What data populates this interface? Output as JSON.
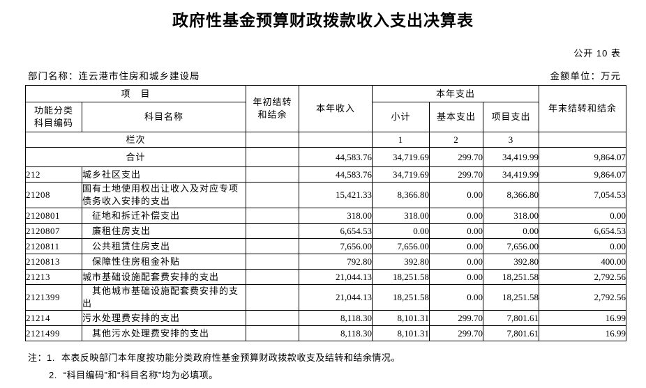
{
  "page": {
    "title": "政府性基金预算财政拨款收入支出决算表",
    "table_number": "公开 10 表",
    "department_label": "部门名称：连云港市住房和城乡建设局",
    "unit_label": "金额单位：万元"
  },
  "table": {
    "headers": {
      "project": "项　目",
      "code": "功能分类\n科目编码",
      "name": "科目名称",
      "carryover_begin": "年初结转\n和结余",
      "income": "本年收入",
      "expenditure": "本年支出",
      "subtotal": "小计",
      "basic": "基本支出",
      "project_exp": "项目支出",
      "carryover_end": "年末结转和结余",
      "row_index_label": "栏次",
      "col_indices": [
        "1",
        "2",
        "3"
      ]
    },
    "total_row": {
      "label": "合计",
      "values": [
        "",
        "44,583.76",
        "34,719.69",
        "299.70",
        "34,419.99",
        "9,864.07"
      ]
    },
    "rows": [
      {
        "code": "212",
        "name": "城乡社区支出",
        "indent": 0,
        "values": [
          "",
          "44,583.76",
          "34,719.69",
          "299.70",
          "34,419.99",
          "9,864.07"
        ]
      },
      {
        "code": "21208",
        "name": "国有土地使用权出让收入及对应专项债务收入安排的支出",
        "indent": 0,
        "values": [
          "",
          "15,421.33",
          "8,366.80",
          "0.00",
          "8,366.80",
          "7,054.53"
        ]
      },
      {
        "code": "2120801",
        "name": "征地和拆迁补偿支出",
        "indent": 1,
        "values": [
          "",
          "318.00",
          "318.00",
          "0.00",
          "318.00",
          "0.00"
        ]
      },
      {
        "code": "2120807",
        "name": "廉租住房支出",
        "indent": 1,
        "values": [
          "",
          "6,654.53",
          "0.00",
          "0.00",
          "0.00",
          "6,654.53"
        ]
      },
      {
        "code": "2120811",
        "name": "公共租赁住房支出",
        "indent": 1,
        "values": [
          "",
          "7,656.00",
          "7,656.00",
          "0.00",
          "7,656.00",
          "0.00"
        ]
      },
      {
        "code": "2120813",
        "name": "保障性住房租金补贴",
        "indent": 1,
        "values": [
          "",
          "792.80",
          "392.80",
          "0.00",
          "392.80",
          "400.00"
        ]
      },
      {
        "code": "21213",
        "name": "城市基础设施配套费安排的支出",
        "indent": 0,
        "values": [
          "",
          "21,044.13",
          "18,251.58",
          "0.00",
          "18,251.58",
          "2,792.56"
        ]
      },
      {
        "code": "2121399",
        "name": "其他城市基础设施配套费安排的支出",
        "indent": 1,
        "values": [
          "",
          "21,044.13",
          "18,251.58",
          "0.00",
          "18,251.58",
          "2,792.56"
        ]
      },
      {
        "code": "21214",
        "name": "污水处理费安排的支出",
        "indent": 0,
        "values": [
          "",
          "8,118.30",
          "8,101.31",
          "299.70",
          "7,801.61",
          "16.99"
        ]
      },
      {
        "code": "2121499",
        "name": "其他污水处理费安排的支出",
        "indent": 1,
        "values": [
          "",
          "8,118.30",
          "8,101.31",
          "299.70",
          "7,801.61",
          "16.99"
        ]
      }
    ]
  },
  "notes": [
    {
      "prefix": "注：1.",
      "text": "本表反映部门本年度按功能分类政府性基金预算财政拨款收支及结转和结余情况。"
    },
    {
      "prefix": "2.",
      "text": "“科目编码”和“科目名称”均为必填项。"
    }
  ]
}
